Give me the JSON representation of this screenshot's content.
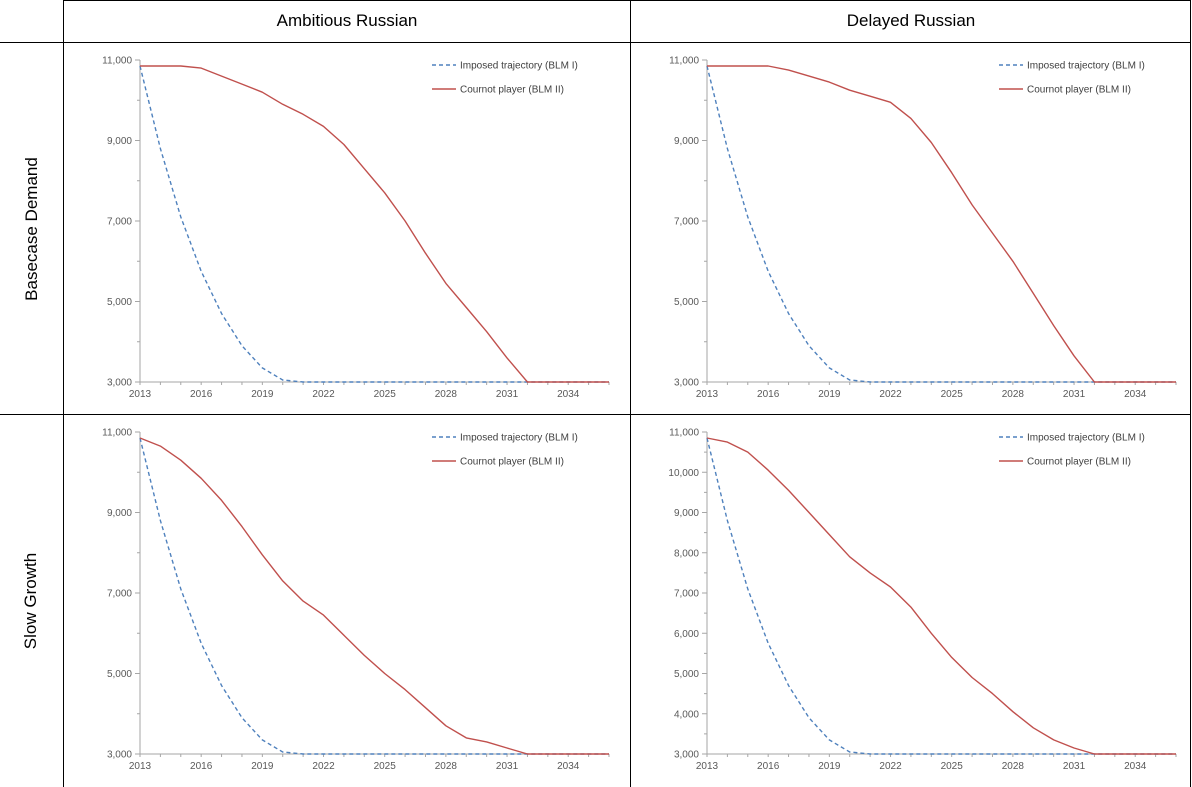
{
  "columns": [
    "Ambitious Russian",
    "Delayed Russian"
  ],
  "rows": [
    "Basecase Demand",
    "Slow Growth"
  ],
  "colors": {
    "imposed": "#4F81BD",
    "cournot": "#C0504D",
    "axis": "#A6A6A6",
    "grid_border": "#000000"
  },
  "chart_data": [
    {
      "type": "line",
      "panel": "Basecase Demand / Ambitious Russian",
      "x": [
        2013,
        2014,
        2015,
        2016,
        2017,
        2018,
        2019,
        2020,
        2021,
        2022,
        2023,
        2024,
        2025,
        2026,
        2027,
        2028,
        2029,
        2030,
        2031,
        2032,
        2033,
        2034,
        2035,
        2036
      ],
      "xticks": [
        2013,
        2016,
        2019,
        2022,
        2025,
        2028,
        2031,
        2034
      ],
      "yticks": [
        3000,
        5000,
        7000,
        9000,
        11000
      ],
      "ylim": [
        3000,
        11000
      ],
      "legend_position": "top-right",
      "series": [
        {
          "name": "Imposed trajectory (BLM I)",
          "style": "dashed",
          "values": [
            10850,
            8800,
            7100,
            5750,
            4700,
            3900,
            3350,
            3050,
            3000,
            3000,
            3000,
            3000,
            3000,
            3000,
            3000,
            3000,
            3000,
            3000,
            3000,
            3000,
            3000,
            3000,
            3000,
            3000
          ]
        },
        {
          "name": "Cournot player (BLM II)",
          "style": "solid",
          "values": [
            10850,
            10850,
            10850,
            10800,
            10600,
            10400,
            10200,
            9900,
            9650,
            9350,
            8900,
            8300,
            7700,
            7000,
            6200,
            5450,
            4850,
            4250,
            3600,
            3000,
            3000,
            3000,
            3000,
            3000
          ]
        }
      ]
    },
    {
      "type": "line",
      "panel": "Basecase Demand / Delayed Russian",
      "x": [
        2013,
        2014,
        2015,
        2016,
        2017,
        2018,
        2019,
        2020,
        2021,
        2022,
        2023,
        2024,
        2025,
        2026,
        2027,
        2028,
        2029,
        2030,
        2031,
        2032,
        2033,
        2034,
        2035,
        2036
      ],
      "xticks": [
        2013,
        2016,
        2019,
        2022,
        2025,
        2028,
        2031,
        2034
      ],
      "yticks": [
        3000,
        5000,
        7000,
        9000,
        11000
      ],
      "ylim": [
        3000,
        11000
      ],
      "legend_position": "top-right",
      "series": [
        {
          "name": "Imposed trajectory (BLM I)",
          "style": "dashed",
          "values": [
            10850,
            8800,
            7100,
            5750,
            4700,
            3900,
            3350,
            3050,
            3000,
            3000,
            3000,
            3000,
            3000,
            3000,
            3000,
            3000,
            3000,
            3000,
            3000,
            3000,
            3000,
            3000,
            3000,
            3000
          ]
        },
        {
          "name": "Cournot player (BLM II)",
          "style": "solid",
          "values": [
            10850,
            10850,
            10850,
            10850,
            10750,
            10600,
            10450,
            10250,
            10100,
            9950,
            9550,
            8950,
            8200,
            7400,
            6700,
            6000,
            5200,
            4400,
            3650,
            3000,
            3000,
            3000,
            3000,
            3000
          ]
        }
      ]
    },
    {
      "type": "line",
      "panel": "Slow Growth / Ambitious Russian",
      "x": [
        2013,
        2014,
        2015,
        2016,
        2017,
        2018,
        2019,
        2020,
        2021,
        2022,
        2023,
        2024,
        2025,
        2026,
        2027,
        2028,
        2029,
        2030,
        2031,
        2032,
        2033,
        2034,
        2035,
        2036
      ],
      "xticks": [
        2013,
        2016,
        2019,
        2022,
        2025,
        2028,
        2031,
        2034
      ],
      "yticks": [
        3000,
        5000,
        7000,
        9000,
        11000
      ],
      "ylim": [
        3000,
        11000
      ],
      "legend_position": "top-right",
      "series": [
        {
          "name": "Imposed trajectory (BLM I)",
          "style": "dashed",
          "values": [
            10850,
            8800,
            7100,
            5750,
            4700,
            3900,
            3350,
            3050,
            3000,
            3000,
            3000,
            3000,
            3000,
            3000,
            3000,
            3000,
            3000,
            3000,
            3000,
            3000,
            3000,
            3000,
            3000,
            3000
          ]
        },
        {
          "name": "Cournot player (BLM II)",
          "style": "solid",
          "values": [
            10850,
            10650,
            10300,
            9850,
            9300,
            8650,
            7950,
            7300,
            6800,
            6450,
            5950,
            5450,
            5000,
            4600,
            4150,
            3700,
            3400,
            3300,
            3150,
            3000,
            3000,
            3000,
            3000,
            3000
          ]
        }
      ]
    },
    {
      "type": "line",
      "panel": "Slow Growth / Delayed Russian",
      "x": [
        2013,
        2014,
        2015,
        2016,
        2017,
        2018,
        2019,
        2020,
        2021,
        2022,
        2023,
        2024,
        2025,
        2026,
        2027,
        2028,
        2029,
        2030,
        2031,
        2032,
        2033,
        2034,
        2035,
        2036
      ],
      "xticks": [
        2013,
        2016,
        2019,
        2022,
        2025,
        2028,
        2031,
        2034
      ],
      "yticks": [
        3000,
        4000,
        5000,
        6000,
        7000,
        8000,
        9000,
        10000,
        11000
      ],
      "ylim": [
        3000,
        11000
      ],
      "legend_position": "top-right",
      "series": [
        {
          "name": "Imposed trajectory (BLM I)",
          "style": "dashed",
          "values": [
            10850,
            8800,
            7100,
            5750,
            4700,
            3900,
            3350,
            3050,
            3000,
            3000,
            3000,
            3000,
            3000,
            3000,
            3000,
            3000,
            3000,
            3000,
            3000,
            3000,
            3000,
            3000,
            3000,
            3000
          ]
        },
        {
          "name": "Cournot player (BLM II)",
          "style": "solid",
          "values": [
            10850,
            10750,
            10500,
            10050,
            9550,
            9000,
            8450,
            7900,
            7500,
            7150,
            6650,
            6000,
            5400,
            4900,
            4500,
            4050,
            3650,
            3350,
            3150,
            3000,
            3000,
            3000,
            3000,
            3000
          ]
        }
      ]
    }
  ]
}
